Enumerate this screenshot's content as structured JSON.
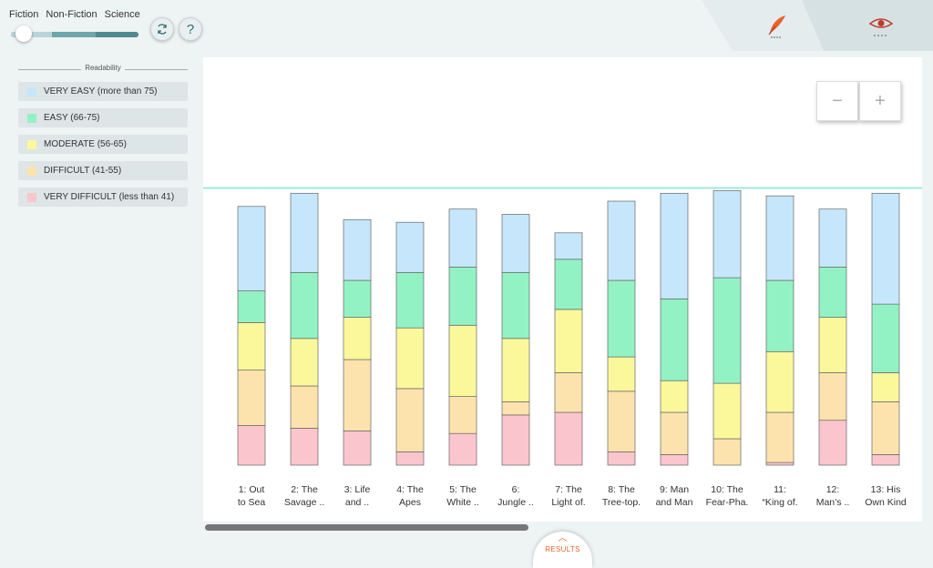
{
  "genres": {
    "fiction": "Fiction",
    "non_fiction": "Non-Fiction",
    "science": "Science"
  },
  "slider": {
    "value_fraction": 0.1
  },
  "buttons": {
    "help_label": "?"
  },
  "legend": {
    "title": "Readability",
    "items": [
      {
        "label": "VERY EASY (more than 75)",
        "color": "#c6e7fb"
      },
      {
        "label": "EASY (66-75)",
        "color": "#92f2c4"
      },
      {
        "label": "MODERATE (56-65)",
        "color": "#fbf89c"
      },
      {
        "label": "DIFFICULT (41-55)",
        "color": "#fce3ad"
      },
      {
        "label": "VERY DIFFICULT (less than 41)",
        "color": "#fbc5cd"
      }
    ]
  },
  "zoom": {
    "minus": "−",
    "plus": "+"
  },
  "results": {
    "label": "RESULTS"
  },
  "chart_data": {
    "type": "bar",
    "stacked": true,
    "categories": [
      [
        "1: Out",
        "to Sea"
      ],
      [
        "2: The",
        "Savage .."
      ],
      [
        "3: Life",
        "and .."
      ],
      [
        "4: The",
        "Apes"
      ],
      [
        "5: The",
        "White .."
      ],
      [
        "6:",
        "Jungle .."
      ],
      [
        "7: The",
        "Light of."
      ],
      [
        "8: The",
        "Tree-top."
      ],
      [
        "9: Man",
        "and Man"
      ],
      [
        "10: The",
        "Fear-Pha."
      ],
      [
        "11:",
        "“King of."
      ],
      [
        "12:",
        "Man’s .."
      ],
      [
        "13: His",
        "Own Kind"
      ]
    ],
    "series": [
      {
        "name": "VERY DIFFICULT (less than 41)",
        "color": "#fbc5cd",
        "values": [
          15,
          14,
          13,
          5,
          12,
          19,
          20,
          5,
          4,
          0,
          1,
          17,
          4
        ]
      },
      {
        "name": "DIFFICULT (41-55)",
        "color": "#fce3ad",
        "values": [
          21,
          16,
          27,
          24,
          14,
          5,
          15,
          23,
          16,
          10,
          19,
          18,
          20
        ]
      },
      {
        "name": "MODERATE (56-65)",
        "color": "#fbf89c",
        "values": [
          18,
          18,
          16,
          23,
          27,
          24,
          24,
          13,
          12,
          21,
          23,
          21,
          11
        ]
      },
      {
        "name": "EASY (66-75)",
        "color": "#92f2c4",
        "values": [
          12,
          25,
          14,
          21,
          22,
          25,
          19,
          29,
          31,
          40,
          27,
          19,
          26
        ]
      },
      {
        "name": "VERY EASY (more than 75)",
        "color": "#c6e7fb",
        "values": [
          32,
          30,
          23,
          19,
          22,
          22,
          10,
          30,
          40,
          33,
          32,
          22,
          42
        ]
      }
    ],
    "ylim": [
      0,
      100
    ],
    "reference_line": 105,
    "reference_line_color": "#9fe8d4",
    "grid": false
  }
}
